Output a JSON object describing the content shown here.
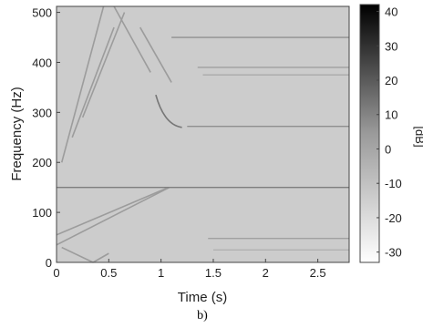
{
  "chart_data": {
    "type": "heatmap",
    "xlabel": "Time (s)",
    "ylabel": "Frequency (Hz)",
    "xlim": [
      0,
      2.8
    ],
    "ylim": [
      0,
      512
    ],
    "x_ticks": [
      0,
      0.5,
      1,
      1.5,
      2,
      2.5
    ],
    "x_tick_labels": [
      "0",
      "0.5",
      "1",
      "1.5",
      "2",
      "2.5"
    ],
    "y_ticks": [
      0,
      100,
      200,
      300,
      400,
      500
    ],
    "y_tick_labels": [
      "0",
      "100",
      "200",
      "300",
      "400",
      "500"
    ],
    "colorbar": {
      "label": "[dB]",
      "range": [
        -33,
        42
      ],
      "ticks": [
        40,
        30,
        20,
        10,
        0,
        -10,
        -20,
        -30
      ],
      "tick_labels": [
        "40",
        "30",
        "20",
        "10",
        "0",
        "-10",
        "-20",
        "-30"
      ],
      "colormap": "gray-reversed"
    },
    "background_level_db": -18,
    "features": {
      "steady_lines": [
        {
          "freq": 150,
          "t_start": 0,
          "t_end": 2.8,
          "level_db": 5
        },
        {
          "freq": 450,
          "t_start": 1.1,
          "t_end": 2.8,
          "level_db": 0
        },
        {
          "freq": 272,
          "t_start": 1.25,
          "t_end": 2.8,
          "level_db": 0
        },
        {
          "freq": 390,
          "t_start": 1.35,
          "t_end": 2.8,
          "level_db": -5
        },
        {
          "freq": 375,
          "t_start": 1.4,
          "t_end": 2.8,
          "level_db": -8
        },
        {
          "freq": 48,
          "t_start": 1.45,
          "t_end": 2.8,
          "level_db": -5
        },
        {
          "freq": 25,
          "t_start": 1.5,
          "t_end": 2.8,
          "level_db": -10
        }
      ],
      "sweeps": [
        {
          "t0": 0,
          "f0": 35,
          "t1": 1.08,
          "f1": 150
        },
        {
          "t0": 0,
          "f0": 55,
          "t1": 1.05,
          "f1": 148
        },
        {
          "t0": 0.05,
          "f0": 30,
          "t1": 0.35,
          "f1": 0
        },
        {
          "t0": 0.35,
          "f0": 0,
          "t1": 0.5,
          "f1": 18
        },
        {
          "t0": 0.05,
          "f0": 200,
          "t1": 0.45,
          "f1": 512
        },
        {
          "t0": 0.15,
          "f0": 250,
          "t1": 0.55,
          "f1": 470
        },
        {
          "t0": 0.25,
          "f0": 290,
          "t1": 0.65,
          "f1": 500
        },
        {
          "t0": 0.55,
          "f0": 512,
          "t1": 0.9,
          "f1": 380
        },
        {
          "t0": 0.8,
          "f0": 470,
          "t1": 1.1,
          "f1": 360
        }
      ],
      "transient": {
        "t0": 0.95,
        "f0": 335,
        "t1": 1.2,
        "f1": 270
      }
    }
  },
  "caption": "b)"
}
